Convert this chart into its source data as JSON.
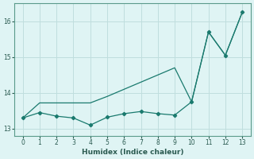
{
  "x": [
    0,
    1,
    2,
    3,
    4,
    5,
    6,
    7,
    8,
    9,
    10,
    11,
    12,
    13
  ],
  "line_smooth": [
    13.3,
    13.72,
    13.72,
    13.72,
    13.72,
    13.9,
    14.1,
    14.3,
    14.5,
    14.7,
    13.75,
    15.7,
    15.05,
    16.25
  ],
  "line_jagged": [
    13.3,
    13.45,
    13.35,
    13.3,
    13.1,
    13.32,
    13.42,
    13.48,
    13.42,
    13.38,
    13.75,
    15.7,
    15.05,
    16.25
  ],
  "line_color": "#1a7a6e",
  "bg_color": "#dff4f4",
  "grid_color": "#c0dede",
  "xlabel": "Humidex (Indice chaleur)",
  "ylim": [
    12.8,
    16.5
  ],
  "xlim": [
    -0.5,
    13.5
  ],
  "yticks": [
    13,
    14,
    15,
    16
  ],
  "xticks": [
    0,
    1,
    2,
    3,
    4,
    5,
    6,
    7,
    8,
    9,
    10,
    11,
    12,
    13
  ]
}
